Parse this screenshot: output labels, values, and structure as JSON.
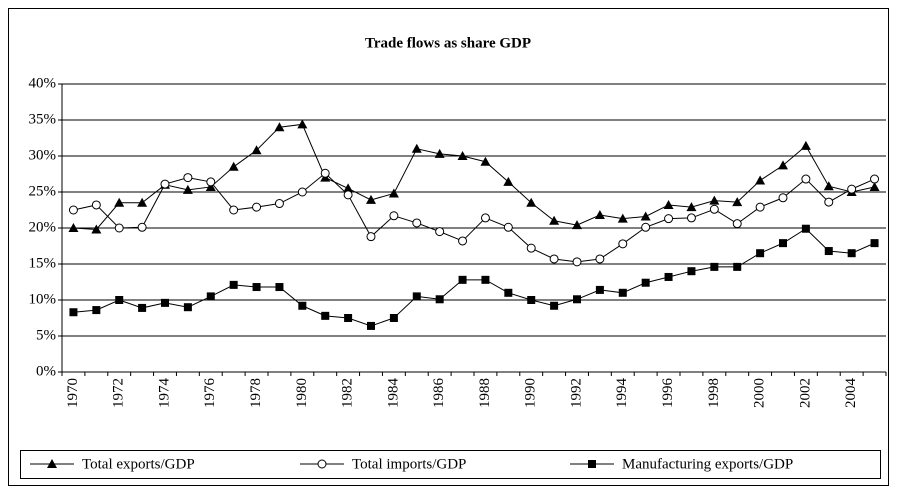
{
  "chart_data": {
    "type": "line",
    "title": "Trade flows as share GDP",
    "categories": [
      "1970",
      null,
      "1972",
      null,
      "1974",
      null,
      "1976",
      null,
      "1978",
      null,
      "1980",
      null,
      "1982",
      null,
      "1984",
      null,
      "1986",
      null,
      "1988",
      null,
      "1990",
      null,
      "1992",
      null,
      "1994",
      null,
      "1996",
      null,
      "1998",
      null,
      "2000",
      null,
      "2002",
      null,
      "2004",
      null
    ],
    "series": [
      {
        "name": "Total exports/GDP",
        "color": "#000000",
        "marker": "triangle",
        "values": [
          20,
          19.8,
          23.5,
          23.5,
          26,
          25.3,
          25.7,
          28.5,
          30.8,
          34,
          34.4,
          27,
          25.5,
          23.9,
          24.8,
          31,
          30.3,
          30,
          29.2,
          26.4,
          23.5,
          21,
          20.4,
          21.8,
          21.3,
          21.6,
          23.2,
          22.9,
          23.8,
          23.6,
          26.6,
          28.7,
          31.4,
          25.8,
          25,
          25.7
        ]
      },
      {
        "name": "Total imports/GDP",
        "color": "#000000",
        "marker": "circle",
        "values": [
          22.5,
          23.2,
          20,
          20.1,
          26.1,
          27,
          26.4,
          22.5,
          22.9,
          23.4,
          25,
          27.6,
          24.6,
          18.8,
          21.7,
          20.7,
          19.5,
          18.2,
          21.4,
          20.1,
          17.2,
          15.7,
          15.3,
          15.7,
          17.8,
          20.1,
          21.3,
          21.4,
          22.6,
          20.6,
          22.9,
          24.2,
          26.8,
          23.6,
          25.4,
          26.8
        ]
      },
      {
        "name": "Manufacturing exports/GDP",
        "color": "#000000",
        "marker": "square",
        "values": [
          8.3,
          8.6,
          10,
          8.9,
          9.6,
          9,
          10.5,
          12.1,
          11.8,
          11.8,
          9.2,
          7.8,
          7.5,
          6.4,
          7.5,
          10.5,
          10.1,
          12.8,
          12.8,
          11,
          10,
          9.2,
          10.1,
          11.4,
          11,
          12.4,
          13.2,
          14,
          14.6,
          14.6,
          16.5,
          17.9,
          19.9,
          16.8,
          16.5,
          17.9
        ]
      }
    ],
    "ylim": [
      0,
      40
    ],
    "yticks": [
      {
        "value": 0,
        "label": "0%"
      },
      {
        "value": 5,
        "label": "5%"
      },
      {
        "value": 10,
        "label": "10%"
      },
      {
        "value": 15,
        "label": "15%"
      },
      {
        "value": 20,
        "label": "20%"
      },
      {
        "value": 25,
        "label": "25%"
      },
      {
        "value": 30,
        "label": "30%"
      },
      {
        "value": 35,
        "label": "35%"
      },
      {
        "value": 40,
        "label": "40%"
      }
    ],
    "grid": true,
    "legend": "bottom"
  }
}
